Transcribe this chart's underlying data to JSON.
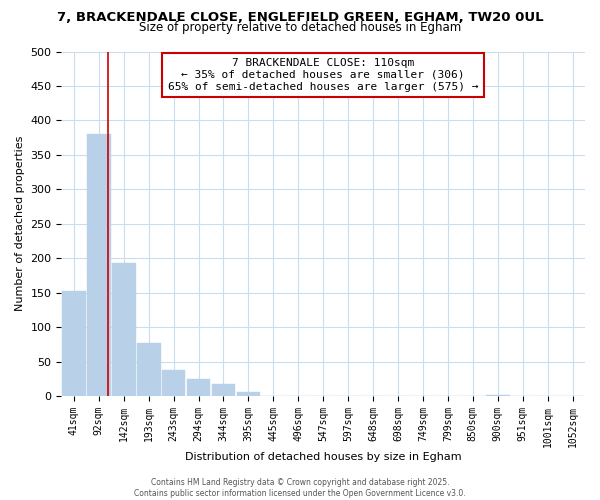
{
  "title_line1": "7, BRACKENDALE CLOSE, ENGLEFIELD GREEN, EGHAM, TW20 0UL",
  "title_line2": "Size of property relative to detached houses in Egham",
  "xlabel": "Distribution of detached houses by size in Egham",
  "ylabel": "Number of detached properties",
  "bar_color": "#b8d0e8",
  "bar_edge_color": "#b8d0e8",
  "annotation_box_text": "7 BRACKENDALE CLOSE: 110sqm\n← 35% of detached houses are smaller (306)\n65% of semi-detached houses are larger (575) →",
  "line_color": "#cc0000",
  "ylim": [
    0,
    500
  ],
  "background_color": "#ffffff",
  "grid_color": "#c8ddf0",
  "footer_line1": "Contains HM Land Registry data © Crown copyright and database right 2025.",
  "footer_line2": "Contains public sector information licensed under the Open Government Licence v3.0.",
  "all_labels": [
    "41sqm",
    "92sqm",
    "142sqm",
    "193sqm",
    "243sqm",
    "294sqm",
    "344sqm",
    "395sqm",
    "445sqm",
    "496sqm",
    "547sqm",
    "597sqm",
    "648sqm",
    "698sqm",
    "749sqm",
    "799sqm",
    "850sqm",
    "900sqm",
    "951sqm",
    "1001sqm",
    "1052sqm"
  ],
  "all_values": [
    152,
    381,
    193,
    77,
    38,
    25,
    17,
    6,
    0,
    0,
    0,
    0,
    0,
    0,
    0,
    0,
    0,
    2,
    0,
    0,
    0
  ],
  "red_line_bar_index": 1,
  "yticks": [
    0,
    50,
    100,
    150,
    200,
    250,
    300,
    350,
    400,
    450,
    500
  ]
}
